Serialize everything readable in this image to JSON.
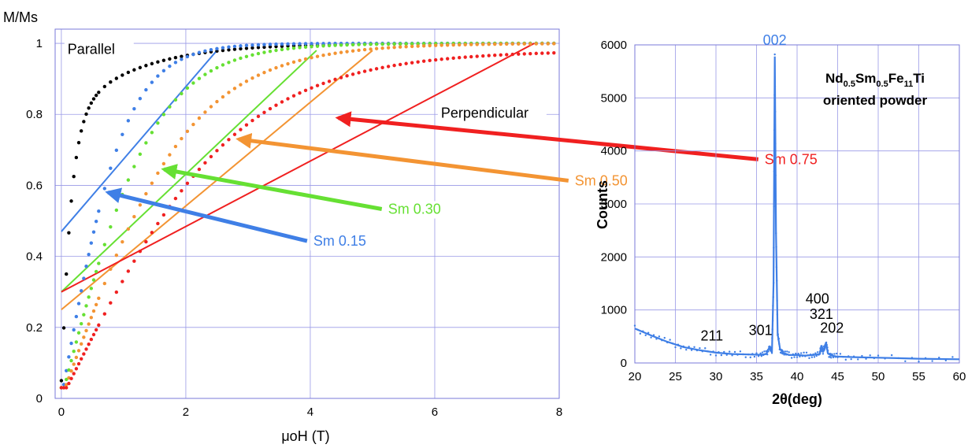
{
  "chart_data": [
    {
      "type": "scatter",
      "ylabel": "M/Ms",
      "xlabel": "μoH (T)",
      "xlim": [
        -0.1,
        8
      ],
      "ylim": [
        0,
        1.04
      ],
      "xticks": [
        0,
        2,
        4,
        6,
        8
      ],
      "xtick_labels": [
        "0",
        "2",
        "4",
        "6",
        "8"
      ],
      "yticks": [
        0,
        0.2,
        0.4,
        0.6,
        0.8,
        1
      ],
      "ytick_labels": [
        "0",
        "0.2",
        "0.4",
        "0.6",
        "0.8",
        "1"
      ],
      "grid": true,
      "annotations": [
        {
          "text": "Parallel",
          "x": 0.1,
          "y": 0.97,
          "color": "#000000"
        },
        {
          "text": "Perpendicular",
          "x": 6.1,
          "y": 0.79,
          "color": "#000000"
        },
        {
          "text": "Sm 0.15",
          "x": 4.05,
          "y": 0.43,
          "color": "#3f7fe6",
          "arrow_to": [
            0.75,
            0.58
          ]
        },
        {
          "text": "Sm 0.30",
          "x": 5.25,
          "y": 0.52,
          "color": "#66e033",
          "arrow_to": [
            1.65,
            0.645
          ]
        },
        {
          "text": "Sm 0.50",
          "x": 8.25,
          "y": 0.6,
          "color": "#f39433",
          "arrow_to": [
            2.85,
            0.73
          ]
        },
        {
          "text": "Sm 0.75",
          "x": 11.3,
          "y": 0.66,
          "color": "#f02020",
          "arrow_to": [
            4.45,
            0.79
          ]
        }
      ],
      "series": [
        {
          "label": "Parallel",
          "color": "#000000",
          "Mr": 0.78,
          "A": 0.22,
          "k": 3.7,
          "x": [
            0,
            2,
            4,
            6,
            8
          ],
          "y": [
            0.05,
            0.955,
            0.98,
            0.993,
            1.0
          ],
          "line": null
        },
        {
          "label": "Sm 0.15",
          "color": "#3f7fe6",
          "A": 1.0,
          "k": 0.85,
          "x": [
            0,
            1,
            2,
            3,
            4,
            6,
            8
          ],
          "y": [
            0.0,
            0.57,
            0.82,
            0.92,
            0.97,
            1.0,
            1.005
          ],
          "line": [
            [
              0,
              0.47
            ],
            [
              2.5,
              0.98
            ]
          ]
        },
        {
          "label": "Sm 0.30",
          "color": "#66e033",
          "A": 1.0,
          "k": 0.58,
          "x": [
            0,
            1,
            2,
            3,
            4,
            6,
            8
          ],
          "y": [
            0.0,
            0.44,
            0.69,
            0.82,
            0.9,
            0.97,
            0.995
          ],
          "line": [
            [
              0,
              0.3
            ],
            [
              4.1,
              0.98
            ]
          ]
        },
        {
          "label": "Sm 0.50",
          "color": "#f39433",
          "A": 1.0,
          "k": 0.42,
          "x": [
            0,
            1,
            2,
            3,
            4,
            6,
            8
          ],
          "y": [
            0.0,
            0.36,
            0.58,
            0.72,
            0.81,
            0.92,
            0.97
          ],
          "line": [
            [
              0,
              0.25
            ],
            [
              5.0,
              0.98
            ]
          ]
        },
        {
          "label": "Sm 0.75",
          "color": "#f02020",
          "A": 0.98,
          "k": 0.31,
          "x": [
            0,
            1,
            2,
            3,
            4,
            6,
            8
          ],
          "y": [
            0.0,
            0.38,
            0.55,
            0.65,
            0.74,
            0.85,
            0.93
          ],
          "line": [
            [
              0,
              0.3
            ],
            [
              7.6,
              1.0
            ]
          ]
        }
      ]
    },
    {
      "type": "line",
      "title_parts": [
        {
          "t": "Nd",
          "sub": false
        },
        {
          "t": "0.5",
          "sub": true
        },
        {
          "t": "Sm",
          "sub": false
        },
        {
          "t": "0.5",
          "sub": true
        },
        {
          "t": "Fe",
          "sub": false
        },
        {
          "t": "11",
          "sub": true
        },
        {
          "t": "Ti",
          "sub": false
        }
      ],
      "title_line2": "oriented powder",
      "xlabel": "2θ(deg)",
      "ylabel": "Counts",
      "xlim": [
        20,
        60
      ],
      "ylim": [
        0,
        6000
      ],
      "xticks": [
        20,
        25,
        30,
        35,
        40,
        45,
        50,
        55,
        60
      ],
      "xtick_labels": [
        "20",
        "25",
        "30",
        "35",
        "40",
        "45",
        "50",
        "55",
        "60"
      ],
      "yticks": [
        0,
        1000,
        2000,
        3000,
        4000,
        5000,
        6000
      ],
      "ytick_labels": [
        "0",
        "1000",
        "2000",
        "3000",
        "4000",
        "5000",
        "6000"
      ],
      "grid": true,
      "color": "#3f7fe6",
      "x": [
        20,
        22,
        24,
        26,
        28,
        30,
        32,
        34,
        35.5,
        36.2,
        36.6,
        36.9,
        37.1,
        37.25,
        37.4,
        37.6,
        37.9,
        38.3,
        39,
        40,
        41,
        42,
        42.8,
        43.0,
        43.2,
        43.4,
        43.6,
        43.8,
        44.2,
        45,
        47,
        50,
        55,
        60
      ],
      "y": [
        650,
        520,
        400,
        300,
        240,
        195,
        170,
        160,
        155,
        170,
        300,
        200,
        1500,
        5780,
        2500,
        550,
        260,
        190,
        150,
        150,
        140,
        150,
        170,
        330,
        200,
        320,
        360,
        180,
        140,
        120,
        110,
        100,
        80,
        70
      ],
      "peak_labels": [
        {
          "text": "002",
          "x": 37.25,
          "y": 6000,
          "color": "#3f7fe6"
        },
        {
          "text": "211",
          "x": 29.5,
          "y": 420,
          "color": "#000000"
        },
        {
          "text": "301",
          "x": 35.5,
          "y": 530,
          "color": "#000000"
        },
        {
          "text": "400",
          "x": 42.5,
          "y": 1120,
          "color": "#000000"
        },
        {
          "text": "321",
          "x": 43.0,
          "y": 830,
          "color": "#000000"
        },
        {
          "text": "202",
          "x": 44.3,
          "y": 570,
          "color": "#000000"
        }
      ]
    }
  ]
}
